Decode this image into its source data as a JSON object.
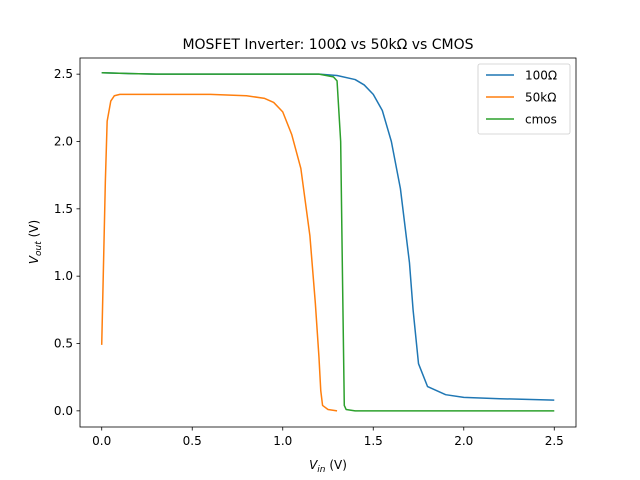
{
  "chart_data": {
    "type": "line",
    "title": "MOSFET Inverter: 100Ω vs 50kΩ vs CMOS",
    "xlabel": {
      "base": "V",
      "sub": "in",
      "rest": " (V)"
    },
    "ylabel": {
      "base": "V",
      "sub": "out",
      "rest": " (V)"
    },
    "xlim": [
      -0.12,
      2.62
    ],
    "ylim": [
      -0.12,
      2.62
    ],
    "xticks": [
      0.0,
      0.5,
      1.0,
      1.5,
      2.0,
      2.5
    ],
    "xtick_labels": [
      "0.0",
      "0.5",
      "1.0",
      "1.5",
      "2.0",
      "2.5"
    ],
    "yticks": [
      0.0,
      0.5,
      1.0,
      1.5,
      2.0,
      2.5
    ],
    "ytick_labels": [
      "0.0",
      "0.5",
      "1.0",
      "1.5",
      "2.0",
      "2.5"
    ],
    "grid": false,
    "legend_position": "top-right",
    "series": [
      {
        "name": "100Ω",
        "color": "#1f77b4",
        "x": [
          0.0,
          0.3,
          0.6,
          0.9,
          1.2,
          1.3,
          1.4,
          1.45,
          1.5,
          1.55,
          1.6,
          1.65,
          1.7,
          1.72,
          1.75,
          1.8,
          1.9,
          2.0,
          2.2,
          2.5
        ],
        "y": [
          2.51,
          2.5,
          2.5,
          2.5,
          2.5,
          2.49,
          2.46,
          2.42,
          2.35,
          2.23,
          2.0,
          1.65,
          1.1,
          0.75,
          0.35,
          0.18,
          0.12,
          0.1,
          0.09,
          0.08
        ]
      },
      {
        "name": "50kΩ",
        "color": "#ff7f0e",
        "x": [
          0.0,
          0.02,
          0.03,
          0.05,
          0.07,
          0.1,
          0.3,
          0.6,
          0.8,
          0.9,
          0.95,
          1.0,
          1.05,
          1.1,
          1.15,
          1.18,
          1.2,
          1.21,
          1.22,
          1.25,
          1.3
        ],
        "y": [
          0.49,
          1.7,
          2.15,
          2.3,
          2.34,
          2.35,
          2.35,
          2.35,
          2.34,
          2.32,
          2.29,
          2.22,
          2.05,
          1.8,
          1.3,
          0.8,
          0.4,
          0.15,
          0.04,
          0.01,
          0.0
        ]
      },
      {
        "name": "cmos",
        "color": "#2ca02c",
        "x": [
          0.0,
          0.3,
          0.6,
          0.9,
          1.2,
          1.28,
          1.3,
          1.32,
          1.33,
          1.34,
          1.35,
          1.4,
          1.6,
          2.0,
          2.5
        ],
        "y": [
          2.51,
          2.5,
          2.5,
          2.5,
          2.5,
          2.48,
          2.45,
          2.0,
          1.0,
          0.04,
          0.01,
          0.0,
          0.0,
          0.0,
          0.0
        ]
      }
    ]
  }
}
